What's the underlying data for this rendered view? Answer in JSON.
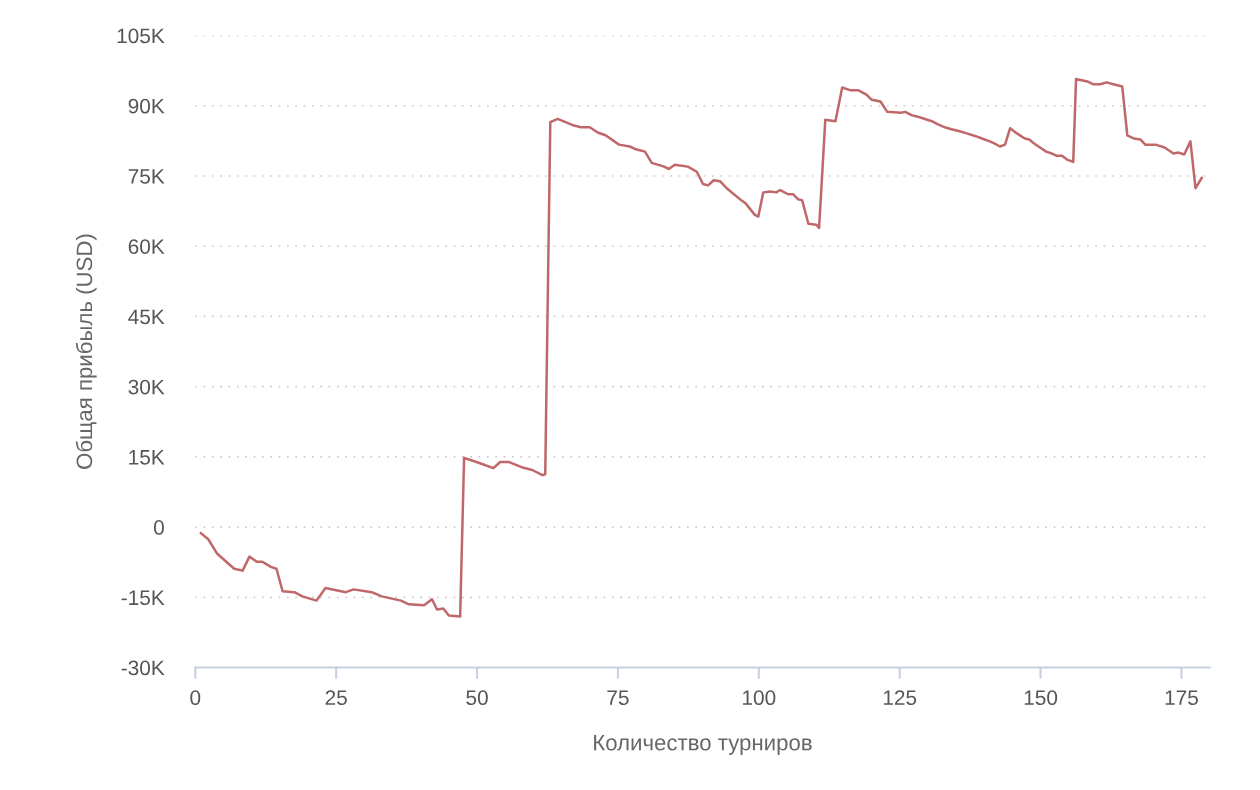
{
  "chart_data": {
    "type": "line",
    "xlabel": "Количество турниров",
    "ylabel": "Общая прибыль (USD)",
    "series": [
      {
        "color": "#c0676a",
        "x": [
          1,
          2.3,
          3.9,
          5.5,
          6.9,
          8.4,
          9.6,
          10.9,
          11.9,
          13.4,
          14.4,
          15.5,
          17.6,
          19,
          21.5,
          23.1,
          26.7,
          28.1,
          31.3,
          33.1,
          36.5,
          37.9,
          40.6,
          42,
          42.9,
          44,
          45,
          47,
          47.7,
          50.4,
          52.9,
          54.1,
          55.7,
          57.9,
          59.8,
          61.6,
          62.1,
          63,
          64.3,
          66.9,
          68.4,
          70,
          71.4,
          72.8,
          75.2,
          77.1,
          78.2,
          79.8,
          81,
          83.2,
          84,
          85.1,
          87.4,
          89,
          90.1,
          91,
          92,
          93.1,
          94.3,
          96.7,
          97.7,
          99.3,
          99.9,
          100.8,
          102,
          103.1,
          103.8,
          105.2,
          106.1,
          107,
          107.7,
          108.8,
          110.2,
          110.7,
          111.8,
          113.6,
          114.8,
          116.3,
          117.7,
          119.1,
          120,
          121.6,
          122.8,
          125.2,
          126,
          127.1,
          128.4,
          130.7,
          131.7,
          133,
          134.2,
          135.5,
          136.9,
          138.5,
          139.6,
          141,
          141.7,
          142.8,
          143.7,
          144.6,
          145.8,
          147.2,
          148,
          148.8,
          149.9,
          151,
          152,
          152.9,
          153.8,
          154.7,
          155.8,
          156.3,
          158.3,
          159.3,
          160.6,
          161.7,
          162.9,
          164.5,
          165.4,
          166.6,
          167.7,
          168.6,
          170.4,
          172,
          173.6,
          174.5,
          175.5,
          176.6,
          177.5,
          178.6
        ],
        "values": [
          -1300,
          -2600,
          -5700,
          -7400,
          -8900,
          -9300,
          -6300,
          -7400,
          -7400,
          -8500,
          -8900,
          -13700,
          -13900,
          -14800,
          -15700,
          -13000,
          -13900,
          -13300,
          -13900,
          -14800,
          -15700,
          -16500,
          -16700,
          -15400,
          -17600,
          -17400,
          -18900,
          -19100,
          14800,
          13700,
          12600,
          13900,
          13900,
          12800,
          12200,
          11100,
          11300,
          86500,
          87200,
          85900,
          85400,
          85400,
          84300,
          83700,
          81700,
          81300,
          80700,
          80200,
          77800,
          77000,
          76500,
          77400,
          77000,
          75900,
          73300,
          73000,
          74100,
          73900,
          72400,
          70000,
          69100,
          66700,
          66300,
          71500,
          71700,
          71500,
          72000,
          71100,
          71100,
          70000,
          69800,
          64800,
          64600,
          63900,
          87000,
          86700,
          93900,
          93300,
          93300,
          92400,
          91300,
          90900,
          88700,
          88500,
          88700,
          88000,
          87600,
          86700,
          86100,
          85400,
          85000,
          84600,
          84100,
          83500,
          83000,
          82400,
          82000,
          81300,
          81700,
          85200,
          84100,
          83000,
          82800,
          82000,
          81100,
          80200,
          79800,
          79300,
          79300,
          78500,
          78000,
          95700,
          95200,
          94600,
          94600,
          95000,
          94600,
          94100,
          83700,
          83000,
          82800,
          81700,
          81700,
          81100,
          79800,
          80000,
          79600,
          82400,
          72400,
          74600
        ]
      }
    ],
    "xlim": [
      0,
      180
    ],
    "xticks": [
      0,
      25,
      50,
      75,
      100,
      125,
      150,
      175
    ],
    "ylim": [
      -30000,
      105000
    ],
    "yticks": [
      {
        "value": -30000,
        "label": "-30K"
      },
      {
        "value": -15000,
        "label": "-15K"
      },
      0,
      {
        "value": 15000,
        "label": "15K"
      },
      {
        "value": 30000,
        "label": "30K"
      },
      {
        "value": 45000,
        "label": "45K"
      },
      {
        "value": 60000,
        "label": "60K"
      },
      {
        "value": 75000,
        "label": "75K"
      },
      {
        "value": 90000,
        "label": "90K"
      },
      {
        "value": 105000,
        "label": "105K"
      }
    ],
    "grid": "y",
    "legend": false,
    "marker": "none",
    "line_style": "solid"
  }
}
